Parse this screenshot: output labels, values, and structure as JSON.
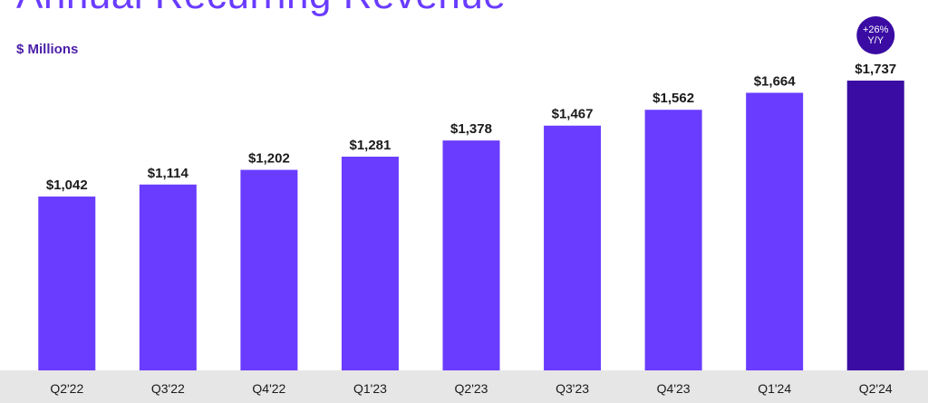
{
  "header": {
    "title": "Annual Recurring Revenue",
    "unit_label": "$ Millions"
  },
  "colors": {
    "bar": "#6a3cff",
    "highlight_bar": "#3a0ca3",
    "badge": "#3a0ca3",
    "axis_band": "#e6e6e6"
  },
  "chart_data": {
    "type": "bar",
    "title": "Annual Recurring Revenue",
    "ylabel": "$ Millions",
    "xlabel": "",
    "ylim": [
      0,
      1800
    ],
    "grid": false,
    "categories": [
      "Q2'22",
      "Q3'22",
      "Q4'22",
      "Q1'23",
      "Q2'23",
      "Q3'23",
      "Q4'23",
      "Q1'24",
      "Q2'24"
    ],
    "values": [
      1042,
      1114,
      1202,
      1281,
      1378,
      1467,
      1562,
      1664,
      1737
    ],
    "value_labels": [
      "$1,042",
      "$1,114",
      "$1,202",
      "$1,281",
      "$1,378",
      "$1,467",
      "$1,562",
      "$1,664",
      "$1,737"
    ],
    "highlight_index": 8,
    "annotation": {
      "category": "Q2'24",
      "line1": "+26%",
      "line2": "Y/Y"
    }
  }
}
